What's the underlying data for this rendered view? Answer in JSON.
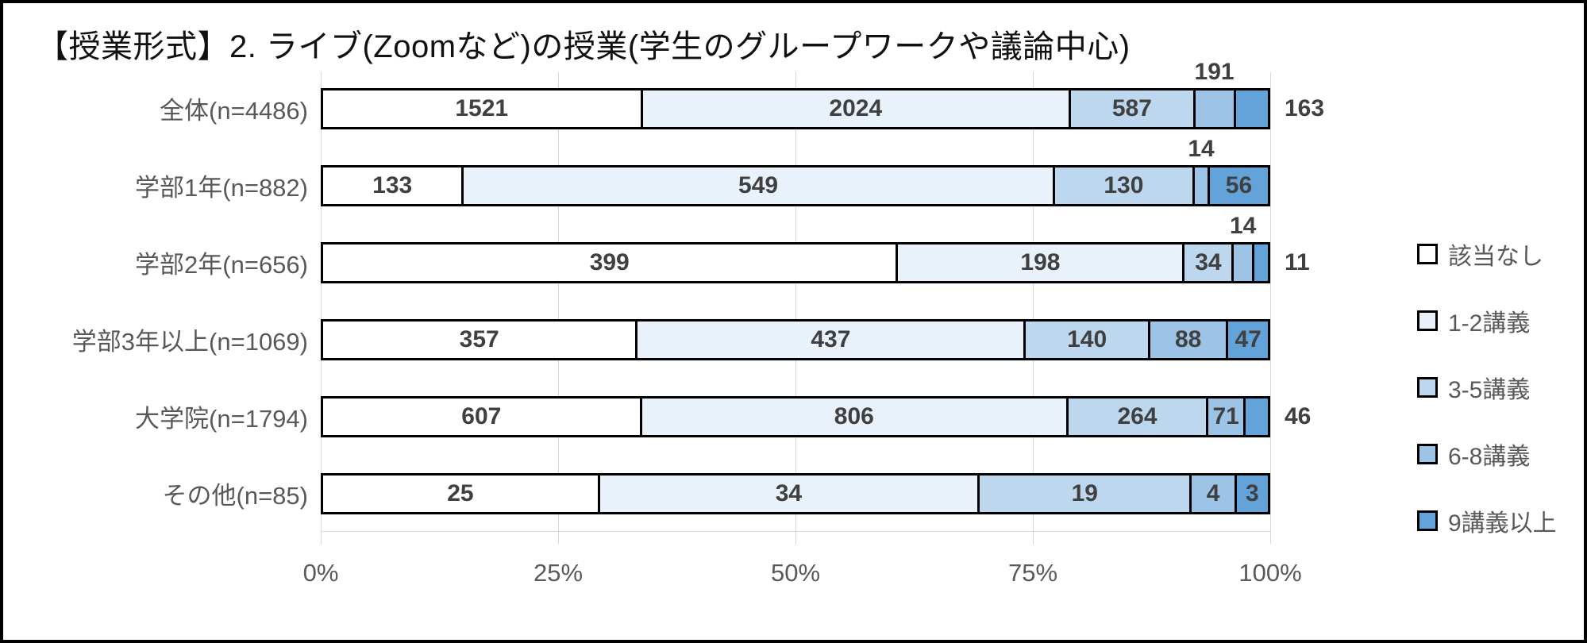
{
  "title": "【授業形式】2. ライブ(Zoomなど)の授業(学生のグループワークや議論中心)",
  "chart_data": {
    "type": "bar",
    "variant": "horizontal_stacked_100_percent",
    "title": "【授業形式】2. ライブ(Zoomなど)の授業(学生のグループワークや議論中心)",
    "categories": [
      "全体(n=4486)",
      "学部1年(n=882)",
      "学部2年(n=656)",
      "学部3年以上(n=1069)",
      "大学院(n=1794)",
      "その他(n=85)"
    ],
    "totals": [
      4486,
      882,
      656,
      1069,
      1794,
      85
    ],
    "series": [
      {
        "name": "該当なし",
        "color": "#ffffff",
        "values": [
          1521,
          133,
          399,
          357,
          607,
          25
        ]
      },
      {
        "name": "1-2講義",
        "color": "#e9f2fa",
        "values": [
          2024,
          549,
          198,
          437,
          806,
          34
        ]
      },
      {
        "name": "3-5講義",
        "color": "#bdd7ee",
        "values": [
          587,
          130,
          34,
          140,
          264,
          19
        ]
      },
      {
        "name": "6-8講義",
        "color": "#9dc3e6",
        "values": [
          191,
          14,
          14,
          88,
          71,
          4
        ]
      },
      {
        "name": "9講義以上",
        "color": "#63a3da",
        "values": [
          163,
          56,
          11,
          47,
          46,
          3
        ]
      }
    ],
    "x_ticks": [
      "0%",
      "25%",
      "50%",
      "75%",
      "100%"
    ],
    "xlim": [
      0,
      100
    ],
    "grid": true,
    "legend_position": "right",
    "value_label_placements": [
      [
        "inside",
        "inside",
        "inside",
        "above",
        "right"
      ],
      [
        "inside",
        "inside",
        "inside",
        "above",
        "inside"
      ],
      [
        "inside",
        "inside",
        "inside",
        "above",
        "right"
      ],
      [
        "inside",
        "inside",
        "inside",
        "inside",
        "inside"
      ],
      [
        "inside",
        "inside",
        "inside",
        "inside",
        "right"
      ],
      [
        "inside",
        "inside",
        "inside",
        "inside",
        "inside"
      ]
    ],
    "bar_border_color": "#000000",
    "value_label_color": "#404040",
    "axis_label_color": "#595959",
    "gridline_color": "#d9d9d9"
  }
}
